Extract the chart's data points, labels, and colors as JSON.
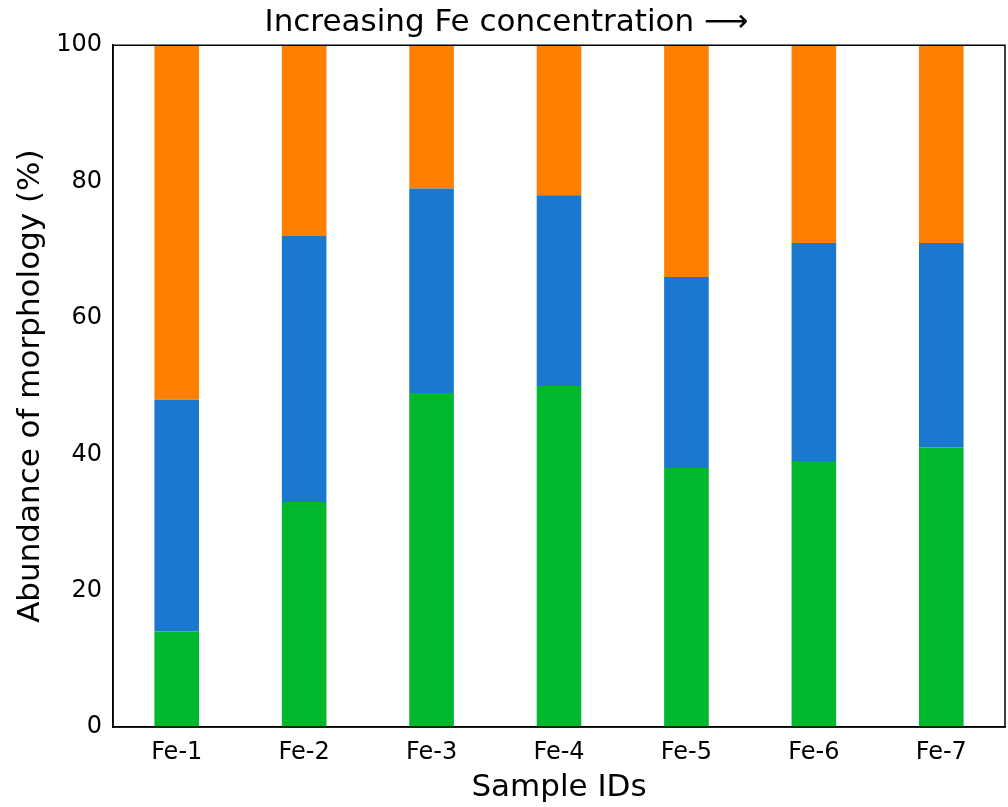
{
  "chart_data": {
    "type": "bar",
    "stacked": true,
    "title": "Increasing Fe concentration ⟶",
    "xlabel": "Sample IDs",
    "ylabel": "Abundance of morphology (%)",
    "categories": [
      "Fe-1",
      "Fe-2",
      "Fe-3",
      "Fe-4",
      "Fe-5",
      "Fe-6",
      "Fe-7"
    ],
    "series": [
      {
        "color": "#00b82e",
        "values": [
          14,
          33,
          49,
          50,
          38,
          39,
          41
        ]
      },
      {
        "color": "#1a78cf",
        "values": [
          34,
          39,
          30,
          28,
          28,
          32,
          30
        ]
      },
      {
        "color": "#ff7f00",
        "values": [
          52,
          28,
          21,
          22,
          34,
          29,
          29
        ]
      }
    ],
    "ylim": [
      0,
      100
    ],
    "yticks": [
      0,
      20,
      40,
      60,
      80,
      100
    ],
    "grid": false,
    "legend": false
  }
}
